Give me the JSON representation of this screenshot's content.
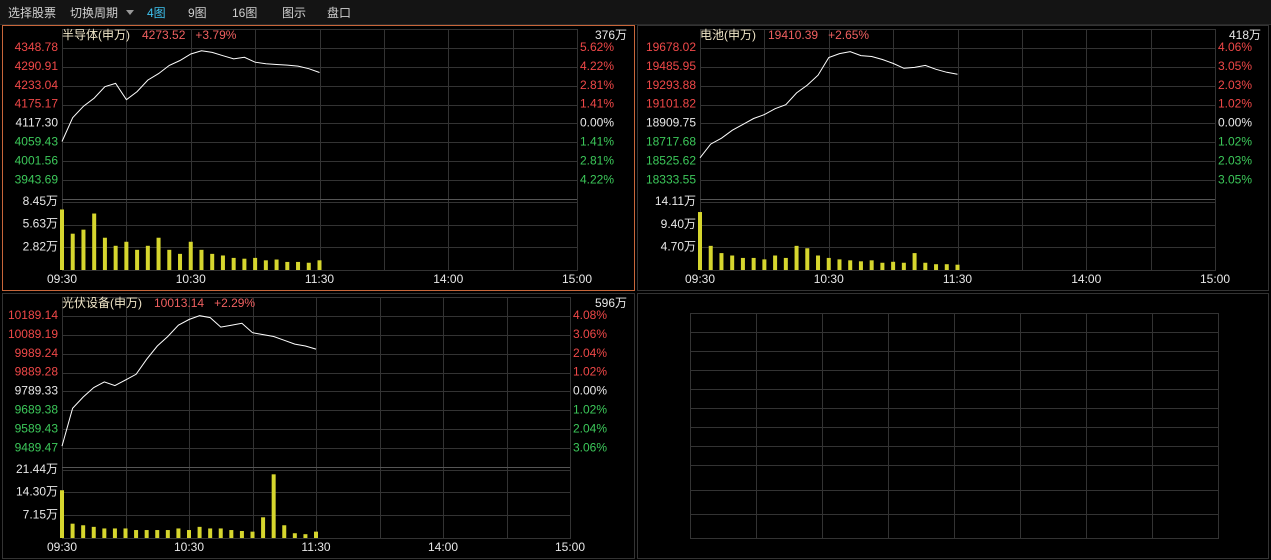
{
  "toolbar": {
    "items": [
      "选择股票",
      "切换周期",
      "4图",
      "9图",
      "16图",
      "图示",
      "盘口"
    ],
    "active": 2
  },
  "chart_data": [
    {
      "type": "line",
      "title": "半导体(申万)",
      "last": 4273.52,
      "change": "+3.79%",
      "volume_header": "376万",
      "color": "#ffffff",
      "volume_color": "#d6d62e",
      "values": [
        4062,
        4135,
        4170,
        4195,
        4230,
        4240,
        4190,
        4215,
        4250,
        4270,
        4295,
        4310,
        4330,
        4340,
        4335,
        4325,
        4315,
        4320,
        4305,
        4300,
        4298,
        4296,
        4293,
        4285,
        4273.52
      ],
      "ylim": [
        3885.82,
        4406.65
      ],
      "yticks": [
        4348.78,
        4290.91,
        4233.04,
        4175.17,
        {
          "value": 4117.3,
          "label": "4117.30"
        },
        4059.43,
        4001.56,
        3943.69
      ],
      "y2lim": [
        -5.62,
        7.03
      ],
      "y2ticks": [
        {
          "value": 5.62,
          "label": "5.62%"
        },
        {
          "value": 4.22,
          "label": "4.22%"
        },
        {
          "value": 2.81,
          "label": "2.81%"
        },
        {
          "value": 1.41,
          "label": "1.41%"
        },
        {
          "value": 0,
          "label": "0.00%"
        },
        {
          "value": -1.41,
          "label": "1.41%"
        },
        {
          "value": -2.81,
          "label": "2.81%"
        },
        {
          "value": -4.22,
          "label": "4.22%"
        }
      ],
      "volumes": [
        7.5,
        4.5,
        5.0,
        7.0,
        4.0,
        3.0,
        3.5,
        2.5,
        3.0,
        4.0,
        2.5,
        2.0,
        3.5,
        2.5,
        2.0,
        1.8,
        1.5,
        1.4,
        1.5,
        1.2,
        1.3,
        1.0,
        1.0,
        0.9,
        1.2
      ],
      "volume_lim": [
        0,
        8.8
      ],
      "volume_ticks": [
        {
          "value": 8.45,
          "label": "8.45万"
        },
        {
          "value": 5.63,
          "label": "5.63万"
        },
        {
          "value": 2.82,
          "label": "2.82万"
        }
      ],
      "x_labels": [
        "09:30",
        "10:30",
        "11:30",
        "14:00",
        "15:00"
      ]
    },
    {
      "type": "line",
      "title": "电池(申万)",
      "last": 19410.39,
      "change": "+2.65%",
      "volume_header": "418万",
      "color": "#ffffff",
      "volume_color": "#d6d62e",
      "values": [
        18560,
        18700,
        18760,
        18840,
        18900,
        18960,
        19000,
        19060,
        19100,
        19220,
        19300,
        19400,
        19580,
        19620,
        19640,
        19600,
        19590,
        19560,
        19520,
        19470,
        19480,
        19500,
        19460,
        19430,
        19410.39
      ],
      "ylim": [
        18141.48,
        19870.09
      ],
      "yticks": [
        19678.02,
        19485.95,
        19293.88,
        19101.82,
        18909.75,
        18717.68,
        18525.62,
        18333.55
      ],
      "y2lim": [
        -4.06,
        5.08
      ],
      "y2ticks": [
        {
          "value": 4.06,
          "label": "4.06%"
        },
        {
          "value": 3.05,
          "label": "3.05%"
        },
        {
          "value": 2.03,
          "label": "2.03%"
        },
        {
          "value": 1.02,
          "label": "1.02%"
        },
        {
          "value": 0,
          "label": "0.00%"
        },
        {
          "value": -1.02,
          "label": "1.02%"
        },
        {
          "value": -2.03,
          "label": "2.03%"
        },
        {
          "value": -3.05,
          "label": "3.05%"
        }
      ],
      "volumes": [
        12,
        5,
        3.5,
        3,
        2.5,
        2.5,
        2.2,
        3,
        2.5,
        5,
        4.5,
        3,
        2.5,
        2.2,
        2,
        1.8,
        2,
        1.5,
        1.7,
        1.5,
        3.5,
        1.5,
        1.2,
        1.2,
        1.1
      ],
      "volume_lim": [
        0,
        14.7
      ],
      "volume_ticks": [
        {
          "value": 14.11,
          "label": "14.11万"
        },
        {
          "value": 9.4,
          "label": "9.40万"
        },
        {
          "value": 4.7,
          "label": "4.70万"
        }
      ],
      "x_labels": [
        "09:30",
        "10:30",
        "11:30",
        "14:00",
        "15:00"
      ]
    },
    {
      "type": "line",
      "title": "光伏设备(申万)",
      "last": 10013.14,
      "change": "+2.29%",
      "volume_header": "596万",
      "color": "#ffffff",
      "volume_color": "#d6d62e",
      "values": [
        9500,
        9700,
        9760,
        9810,
        9840,
        9820,
        9850,
        9880,
        9960,
        10030,
        10080,
        10140,
        10170,
        10190,
        10180,
        10130,
        10140,
        10150,
        10100,
        10090,
        10080,
        10060,
        10040,
        10030,
        10013.14
      ],
      "ylim": [
        9389.52,
        10289.09
      ],
      "yticks": [
        10189.14,
        10089.19,
        9989.24,
        9889.28,
        9789.33,
        9689.38,
        9589.43,
        9489.47
      ],
      "y2lim": [
        -4.08,
        5.1
      ],
      "y2ticks": [
        {
          "value": 4.08,
          "label": "4.08%"
        },
        {
          "value": 3.06,
          "label": "3.06%"
        },
        {
          "value": 2.04,
          "label": "2.04%"
        },
        {
          "value": 1.02,
          "label": "1.02%"
        },
        {
          "value": 0,
          "label": "0.00%"
        },
        {
          "value": -1.02,
          "label": "1.02%"
        },
        {
          "value": -2.04,
          "label": "2.04%"
        },
        {
          "value": -3.06,
          "label": "3.06%"
        }
      ],
      "volumes": [
        15,
        4.5,
        4,
        3.5,
        3,
        3,
        3,
        2.5,
        2.5,
        2.5,
        2.5,
        3,
        2.5,
        3.5,
        3,
        3,
        2.5,
        2.2,
        2,
        6.5,
        20,
        4,
        1.5,
        1.2,
        2
      ],
      "volume_lim": [
        0,
        22.3
      ],
      "volume_ticks": [
        {
          "value": 21.44,
          "label": "21.44万"
        },
        {
          "value": 14.3,
          "label": "14.30万"
        },
        {
          "value": 7.15,
          "label": "7.15万"
        }
      ],
      "x_labels": [
        "09:30",
        "10:30",
        "11:30",
        "14:00",
        "15:00"
      ]
    }
  ]
}
